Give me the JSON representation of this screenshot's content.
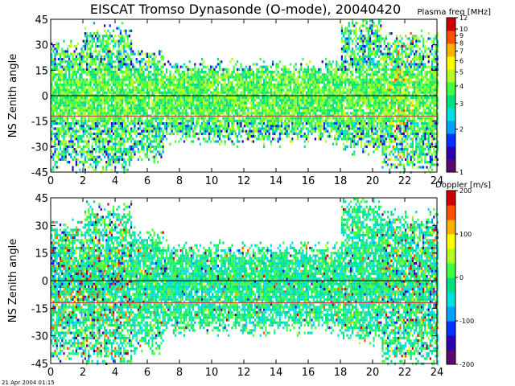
{
  "header": {
    "title": "EISCAT Tromso Dynasonde (O-mode),  20040420"
  },
  "footer": {
    "timestamp": "21 Apr 2004 01:15"
  },
  "palette": [
    "#5a0a6e",
    "#2a00b0",
    "#0030ff",
    "#00a0ff",
    "#00e0e0",
    "#00e080",
    "#40ff40",
    "#b0ff20",
    "#ffff00",
    "#ffb000",
    "#ff5000",
    "#d00000"
  ],
  "chart_data": [
    {
      "type": "heatmap",
      "name": "plasma-frequency",
      "title": "EISCAT Tromso Dynasonde (O-mode),  20040420",
      "xlabel": "",
      "ylabel": "NS Zenith angle",
      "xlim": [
        0,
        24
      ],
      "ylim": [
        -45,
        45
      ],
      "x_ticks": [
        0,
        2,
        4,
        6,
        8,
        10,
        12,
        14,
        16,
        18,
        20,
        22,
        24
      ],
      "y_ticks": [
        -45,
        -30,
        -15,
        0,
        15,
        30,
        45
      ],
      "reference_lines": [
        {
          "y": 0,
          "color": "#000000"
        },
        {
          "y": -12,
          "color": "#c04040"
        }
      ],
      "colorbar": {
        "label": "Plasma freq [MHz]",
        "scale": "log",
        "range": [
          1,
          12
        ],
        "ticks": [
          1,
          2,
          3,
          4,
          5,
          6,
          7,
          8,
          9,
          10,
          12
        ]
      }
    },
    {
      "type": "heatmap",
      "name": "doppler",
      "title": "",
      "xlabel": "",
      "ylabel": "NS Zenith angle",
      "xlim": [
        0,
        24
      ],
      "ylim": [
        -45,
        45
      ],
      "x_ticks": [
        0,
        2,
        4,
        6,
        8,
        10,
        12,
        14,
        16,
        18,
        20,
        22,
        24
      ],
      "y_ticks": [
        -45,
        -30,
        -15,
        0,
        15,
        30,
        45
      ],
      "reference_lines": [
        {
          "y": 0,
          "color": "#000000"
        },
        {
          "y": -12,
          "color": "#c04040"
        }
      ],
      "colorbar": {
        "label": "Doppler [m/s]",
        "scale": "linear",
        "range": [
          -200,
          200
        ],
        "ticks": [
          -200,
          -100,
          0,
          100,
          200
        ]
      }
    }
  ]
}
